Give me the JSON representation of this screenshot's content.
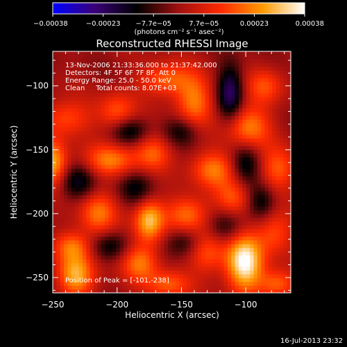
{
  "chart_data": {
    "type": "heatmap",
    "title": "Reconstructed RHESSI Image",
    "xlabel": "Heliocentric X (arcsec)",
    "ylabel": "Heliocentric Y (arcsec)",
    "xlim": [
      -250,
      -65
    ],
    "ylim": [
      -262,
      -73
    ],
    "x_ticks": [
      {
        "value": -250,
        "label": "−250"
      },
      {
        "value": -200,
        "label": "−200"
      },
      {
        "value": -150,
        "label": "−150"
      },
      {
        "value": -100,
        "label": "−100"
      }
    ],
    "y_ticks": [
      {
        "value": -100,
        "label": "−100"
      },
      {
        "value": -150,
        "label": "−150"
      },
      {
        "value": -200,
        "label": "−200"
      },
      {
        "value": -250,
        "label": "−250"
      }
    ],
    "annotations": [
      "13-Nov-2006 21:33:36.000 to 21:37:42.000",
      "Detectors: 4F 5F 6F 7F 8F, Att 0",
      "Energy Range: 25.0 - 50.0 keV",
      "Clean     Total counts: 8.07E+03"
    ],
    "peak_label": "Position of Peak = [-101,-238]",
    "peak": [
      -101,
      -238
    ],
    "colorbar": {
      "range": [
        -0.00038,
        0.00038
      ],
      "tick_labels": [
        "−0.00038",
        "−0.00023",
        "−7.7e−05",
        "7.7e−05",
        "0.00023",
        "0.00038"
      ],
      "unit_label": "(photons cm⁻² s⁻¹ asec⁻²)",
      "colors": [
        "#0000ff",
        "#3a0078",
        "#000000",
        "#a01010",
        "#ff2a00",
        "#ff9a00",
        "#ffffff"
      ]
    },
    "blobs": [
      {
        "x": -101,
        "y": -238,
        "sx": 10,
        "sy": 16,
        "a": 1.0
      },
      {
        "x": -232,
        "y": -248,
        "sx": 10,
        "sy": 12,
        "a": 0.72
      },
      {
        "x": -175,
        "y": -205,
        "sx": 8,
        "sy": 12,
        "a": 0.78
      },
      {
        "x": -250,
        "y": -160,
        "sx": 8,
        "sy": 12,
        "a": 0.72
      },
      {
        "x": -240,
        "y": -125,
        "sx": 14,
        "sy": 10,
        "a": 0.42
      },
      {
        "x": -200,
        "y": -120,
        "sx": 10,
        "sy": 10,
        "a": 0.45
      },
      {
        "x": -162,
        "y": -95,
        "sx": 14,
        "sy": 9,
        "a": 0.5
      },
      {
        "x": -140,
        "y": -112,
        "sx": 10,
        "sy": 14,
        "a": 0.55
      },
      {
        "x": -98,
        "y": -132,
        "sx": 12,
        "sy": 12,
        "a": 0.58
      },
      {
        "x": -85,
        "y": -100,
        "sx": 10,
        "sy": 10,
        "a": 0.4
      },
      {
        "x": -205,
        "y": -158,
        "sx": 14,
        "sy": 9,
        "a": 0.55
      },
      {
        "x": -172,
        "y": -152,
        "sx": 10,
        "sy": 10,
        "a": 0.45
      },
      {
        "x": -125,
        "y": -165,
        "sx": 12,
        "sy": 10,
        "a": 0.55
      },
      {
        "x": -215,
        "y": -200,
        "sx": 10,
        "sy": 12,
        "a": 0.55
      },
      {
        "x": -145,
        "y": -200,
        "sx": 12,
        "sy": 10,
        "a": 0.52
      },
      {
        "x": -110,
        "y": -188,
        "sx": 10,
        "sy": 10,
        "a": 0.4
      },
      {
        "x": -75,
        "y": -165,
        "sx": 10,
        "sy": 12,
        "a": 0.45
      },
      {
        "x": -235,
        "y": -225,
        "sx": 10,
        "sy": 8,
        "a": 0.45
      },
      {
        "x": -182,
        "y": -238,
        "sx": 10,
        "sy": 10,
        "a": 0.55
      },
      {
        "x": -130,
        "y": -230,
        "sx": 10,
        "sy": 12,
        "a": 0.45
      },
      {
        "x": -160,
        "y": -255,
        "sx": 12,
        "sy": 8,
        "a": 0.45
      },
      {
        "x": -78,
        "y": -215,
        "sx": 10,
        "sy": 12,
        "a": 0.42
      },
      {
        "x": -75,
        "y": -255,
        "sx": 10,
        "sy": 8,
        "a": 0.5
      },
      {
        "x": -112,
        "y": -105,
        "sx": 7,
        "sy": 16,
        "a": -0.6
      },
      {
        "x": -190,
        "y": -135,
        "sx": 10,
        "sy": 8,
        "a": -0.4
      },
      {
        "x": -150,
        "y": -135,
        "sx": 10,
        "sy": 8,
        "a": -0.35
      },
      {
        "x": -230,
        "y": -175,
        "sx": 10,
        "sy": 10,
        "a": -0.4
      },
      {
        "x": -185,
        "y": -180,
        "sx": 10,
        "sy": 10,
        "a": -0.35
      },
      {
        "x": -100,
        "y": -160,
        "sx": 8,
        "sy": 12,
        "a": -0.4
      },
      {
        "x": -205,
        "y": -225,
        "sx": 10,
        "sy": 8,
        "a": -0.35
      },
      {
        "x": -148,
        "y": -222,
        "sx": 10,
        "sy": 8,
        "a": -0.35
      },
      {
        "x": -115,
        "y": -210,
        "sx": 10,
        "sy": 10,
        "a": -0.35
      },
      {
        "x": -88,
        "y": -190,
        "sx": 8,
        "sy": 10,
        "a": -0.4
      }
    ]
  },
  "footer": {
    "date": "16-Jul-2013 23:32"
  }
}
